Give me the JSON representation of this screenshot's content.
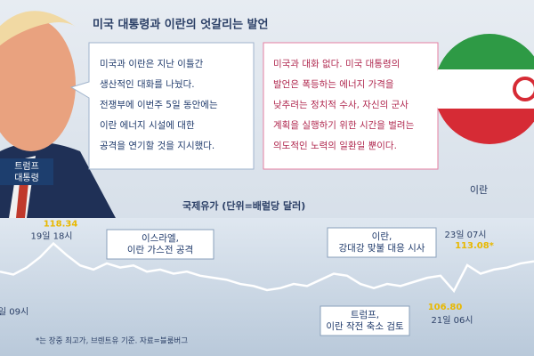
{
  "header": {
    "title": "미국 대통령과 이란의 엇갈리는 발언"
  },
  "trump": {
    "label": [
      "트럼프",
      "대통령"
    ],
    "quote": [
      "미국과 이란은 지난 이틀간",
      "생산적인 대화를 나눴다.",
      "전쟁부에 이번주 5일 동안에는",
      "이란 에너지 시설에 대한",
      "공격을 연기할 것을 지시했다."
    ]
  },
  "iran": {
    "label": "이란",
    "quote": [
      "미국과 대화 없다. 미국 대통령의",
      "발언은 폭등하는 에너지 가격을",
      "낮추려는 정치적 수사, 자신의 군사",
      "계획을 실행하기 위한 시간을 벌려는",
      "의도적인 노력의 일환일 뿐이다."
    ]
  },
  "chart_data": {
    "type": "line",
    "title": "국제유가 (단위=배럴당 달러)",
    "note": "*는 장중 최고가, 브렌트유 기준. 자료=블룸버그",
    "categories": [
      null,
      "일 09시",
      null,
      null,
      "19일 18시",
      null,
      null,
      null,
      null,
      null,
      null,
      null,
      null,
      null,
      null,
      null,
      null,
      null,
      null,
      null,
      null,
      null,
      null,
      null,
      null,
      null,
      null,
      null,
      null,
      null,
      null,
      null,
      null,
      null,
      "21일 06시",
      "23일 07시",
      null,
      null,
      null,
      null,
      null
    ],
    "series": [
      {
        "color": "#ffffff",
        "values": [
          111.5,
          110.8,
          112.5,
          115,
          118.34,
          115.5,
          113,
          112,
          113.5,
          112.5,
          113,
          111.5,
          112,
          111,
          111.5,
          110.5,
          110,
          109.5,
          108.5,
          108,
          107,
          107.5,
          108.5,
          108,
          109.5,
          111,
          110.5,
          108.5,
          107.5,
          108.5,
          108,
          109,
          110,
          110.5,
          106.8,
          113.08,
          111,
          112,
          112.5,
          113.5,
          114
        ],
        "value_labels": [
          null,
          null,
          null,
          null,
          "118.34",
          null,
          null,
          null,
          null,
          null,
          null,
          null,
          null,
          null,
          null,
          null,
          null,
          null,
          null,
          null,
          null,
          null,
          null,
          null,
          null,
          null,
          null,
          null,
          null,
          null,
          null,
          null,
          null,
          null,
          "106.80",
          "113.08*",
          null,
          null,
          null,
          null,
          null
        ]
      }
    ],
    "ylim": [
      91,
      123
    ],
    "annotations": [
      [
        "이스라엘,",
        "이란 가스전 공격"
      ],
      [
        "이란,",
        "강대강 맞불 대응 시사"
      ],
      [
        "트럼프,",
        "이란 작전 축소 검토"
      ]
    ]
  }
}
